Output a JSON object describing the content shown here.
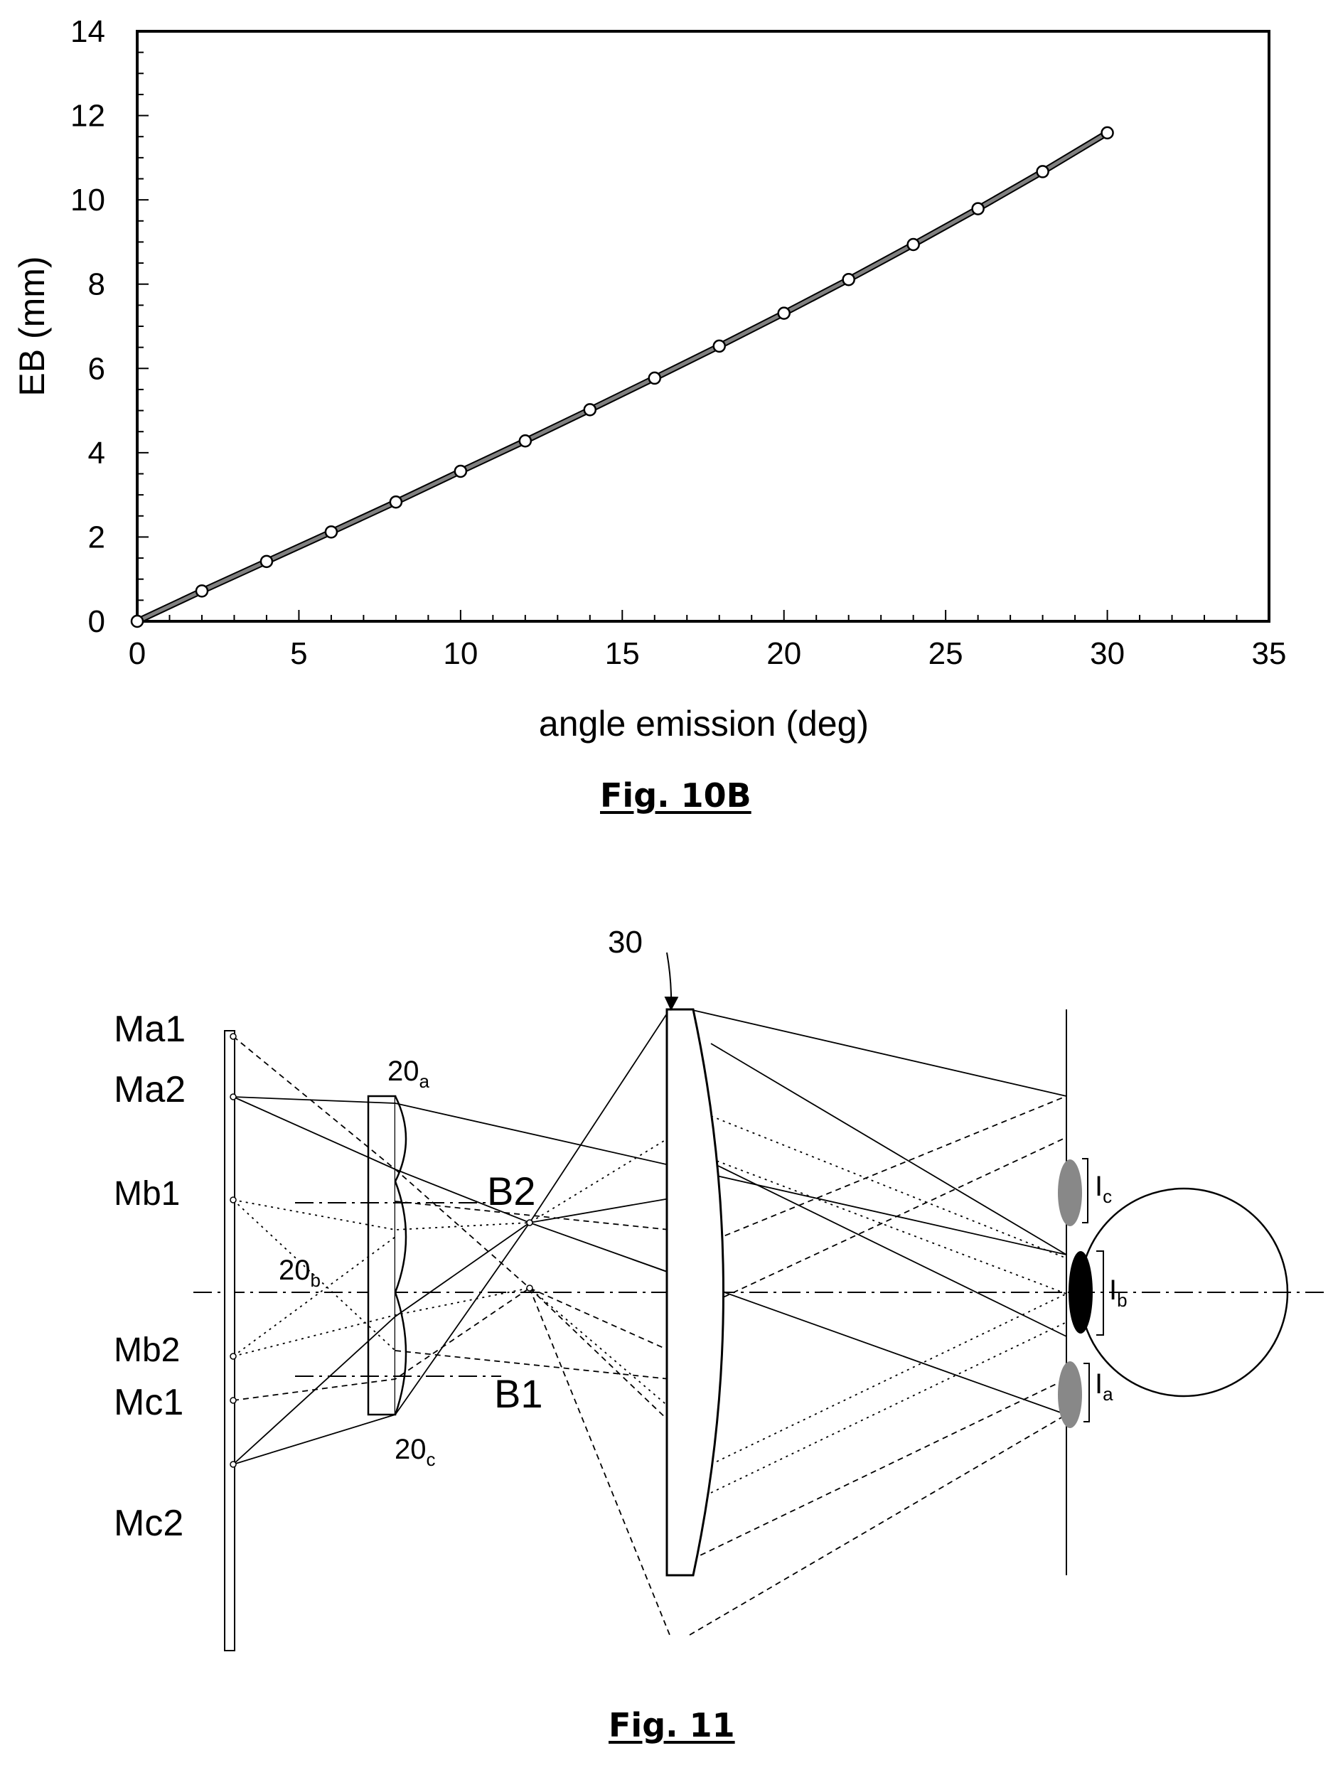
{
  "chart_data": {
    "type": "line",
    "title": "",
    "xlabel": "angle emission (deg)",
    "ylabel": "EB (mm)",
    "xlim": [
      0,
      35
    ],
    "ylim": [
      0,
      14
    ],
    "xticks": [
      0,
      5,
      10,
      15,
      20,
      25,
      30,
      35
    ],
    "yticks": [
      0,
      2,
      4,
      6,
      8,
      10,
      12,
      14
    ],
    "grid": false,
    "legend": "none",
    "series": [
      {
        "x": [
          0,
          2,
          4,
          6,
          8,
          10,
          12,
          14,
          16,
          18,
          20,
          22,
          24,
          26,
          28,
          30
        ],
        "y": [
          0,
          0.72,
          1.42,
          2.12,
          2.83,
          3.56,
          4.28,
          5.02,
          5.77,
          6.53,
          7.31,
          8.11,
          8.94,
          9.79,
          10.67,
          11.59
        ]
      }
    ],
    "style": {
      "line_color": "#808080",
      "marker": "open-circle"
    }
  },
  "captions": {
    "chart": "Fig. 10B",
    "diagram": "Fig. 11"
  },
  "diagram_labels": {
    "Ma1": "Ma1",
    "Ma2": "Ma2",
    "Mb1": "Mb1",
    "Mb2": "Mb2",
    "Mc1": "Mc1",
    "Mc2": "Mc2",
    "B1": "B1",
    "B2": "B2",
    "lens_30": "30",
    "lens_20": "20",
    "sub_a": "a",
    "sub_b": "b",
    "sub_c": "c",
    "I": "I"
  }
}
